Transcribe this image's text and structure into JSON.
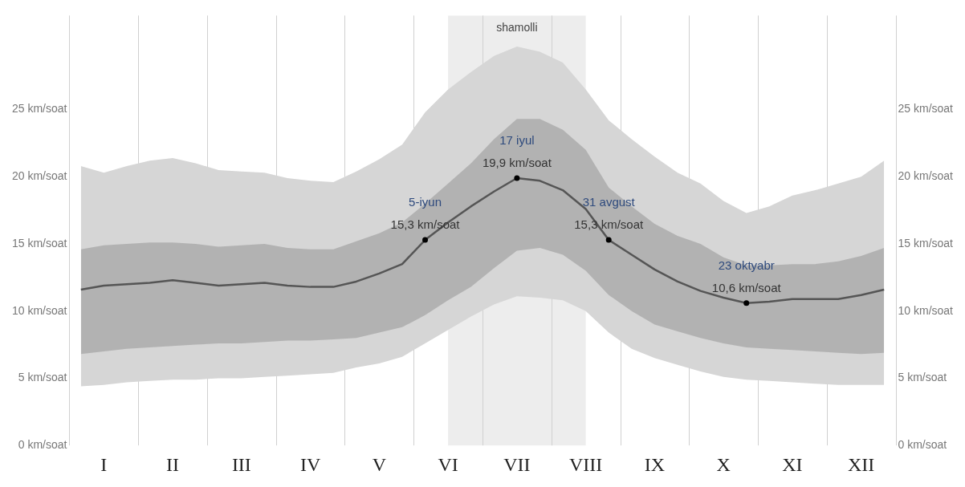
{
  "chart_data": {
    "type": "line",
    "categories": [
      null,
      "I",
      null,
      null,
      "II",
      null,
      null,
      "III",
      null,
      null,
      "IV",
      null,
      null,
      "V",
      null,
      null,
      "VI",
      null,
      null,
      "VII",
      null,
      null,
      "VIII",
      null,
      null,
      "IX",
      null,
      null,
      "X",
      null,
      null,
      "XI",
      null,
      null,
      "XII",
      null
    ],
    "series": [
      {
        "color": "#d6d6d6",
        "values": [
          null,
          null,
          null,
          null,
          null,
          null,
          null,
          null,
          null,
          null,
          null,
          null,
          null,
          null,
          null,
          null,
          null,
          null,
          null,
          null,
          null,
          null,
          null,
          null,
          null,
          null,
          null,
          null,
          null,
          null,
          null,
          null,
          null,
          null,
          null,
          null
        ],
        "lower": [
          4.4,
          4.5,
          4.7,
          4.8,
          4.9,
          4.9,
          5.0,
          5.0,
          5.1,
          5.2,
          5.3,
          5.4,
          5.8,
          6.1,
          6.6,
          7.6,
          8.6,
          9.6,
          10.5,
          11.1,
          11.0,
          10.8,
          10.0,
          8.4,
          7.2,
          6.5,
          6.0,
          5.5,
          5.1,
          4.9,
          4.8,
          4.7,
          4.6,
          4.5,
          4.5,
          4.5
        ],
        "upper": [
          20.8,
          20.3,
          20.8,
          21.2,
          21.4,
          21.0,
          20.5,
          20.4,
          20.3,
          19.9,
          19.7,
          19.6,
          20.4,
          21.3,
          22.4,
          24.8,
          26.5,
          27.8,
          29.0,
          29.7,
          29.3,
          28.5,
          26.5,
          24.2,
          22.8,
          21.5,
          20.3,
          19.5,
          18.2,
          17.3,
          17.8,
          18.6,
          19.0,
          19.5,
          20.0,
          21.2
        ]
      },
      {
        "color": "#555555",
        "values": [
          11.6,
          11.9,
          12.0,
          12.1,
          12.3,
          12.1,
          11.9,
          12.0,
          12.1,
          11.9,
          11.8,
          11.8,
          12.2,
          12.8,
          13.5,
          15.3,
          16.6,
          17.8,
          18.9,
          19.9,
          19.7,
          19.0,
          17.6,
          15.3,
          14.2,
          13.1,
          12.2,
          11.5,
          11.0,
          10.6,
          10.7,
          10.9,
          10.9,
          10.9,
          11.2,
          11.6
        ],
        "lower": [
          6.8,
          7.0,
          7.2,
          7.3,
          7.4,
          7.5,
          7.6,
          7.6,
          7.7,
          7.8,
          7.8,
          7.9,
          8.0,
          8.4,
          8.8,
          9.7,
          10.8,
          11.8,
          13.2,
          14.5,
          14.7,
          14.2,
          13.0,
          11.2,
          10.0,
          9.0,
          8.5,
          8.0,
          7.6,
          7.3,
          7.2,
          7.1,
          7.0,
          6.9,
          6.8,
          6.9
        ],
        "upper": [
          14.6,
          14.9,
          15.0,
          15.1,
          15.1,
          15.0,
          14.8,
          14.9,
          15.0,
          14.7,
          14.6,
          14.6,
          15.2,
          15.8,
          16.6,
          18.0,
          19.5,
          21.0,
          22.8,
          24.3,
          24.3,
          23.5,
          22.0,
          19.2,
          17.8,
          16.5,
          15.6,
          15.0,
          14.0,
          13.4,
          13.4,
          13.5,
          13.5,
          13.7,
          14.1,
          14.7
        ],
        "value_labels": [
          null,
          null,
          null,
          null,
          null,
          null,
          null,
          null,
          null,
          null,
          null,
          null,
          null,
          null,
          null,
          "5-iyun\n15,3 km/soat",
          null,
          null,
          null,
          "17 iyul\n19,9 km/soat",
          null,
          null,
          null,
          "31 avgust\n15,3 km/soat",
          null,
          null,
          null,
          null,
          null,
          "23 oktyabr\n10,6 km/soat",
          null,
          null,
          null,
          null,
          null,
          null
        ]
      }
    ],
    "ylim": [
      0,
      32
    ],
    "yticks": [
      {
        "value": 0,
        "label": "0 km/soat"
      },
      {
        "value": 5,
        "label": "5 km/soat"
      },
      {
        "value": 10,
        "label": "10 km/soat"
      },
      {
        "value": 15,
        "label": "15 km/soat"
      },
      {
        "value": 20,
        "label": "20 km/soat"
      },
      {
        "value": 25,
        "label": "25 km/soat"
      }
    ],
    "y2lim": [
      0,
      32
    ],
    "y2ticks": [
      {
        "value": 0,
        "label": "0 km/soat"
      },
      {
        "value": 5,
        "label": "5 km/soat"
      },
      {
        "value": 10,
        "label": "10 km/soat"
      },
      {
        "value": 15,
        "label": "15 km/soat"
      },
      {
        "value": 20,
        "label": "20 km/soat"
      },
      {
        "value": 25,
        "label": "25 km/soat"
      }
    ],
    "bands": [
      {
        "axis": "x",
        "from": "VI",
        "to": "VIII",
        "label": "shamolli",
        "color": "#ededed"
      }
    ],
    "grid": "x",
    "legend": false
  }
}
